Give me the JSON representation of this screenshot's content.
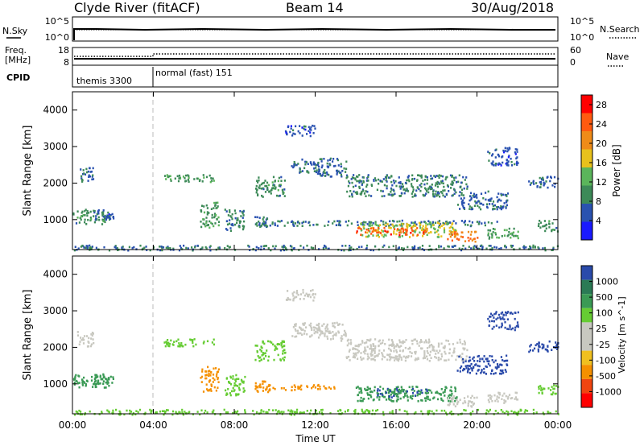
{
  "header": {
    "station": "Clyde River (fitACF)",
    "beam": "Beam 14",
    "date": "30/Aug/2018"
  },
  "nsky_panel": {
    "left_label": "N.Sky",
    "right_label": "N.Search",
    "left_ticks": [
      "10^5",
      "10^0"
    ],
    "right_ticks": [
      "10^5",
      "10^0"
    ]
  },
  "freq_panel": {
    "left_label_1": "Freq.",
    "left_label_2": "[MHz]",
    "right_label": "Nave",
    "left_ticks": [
      "18",
      "8"
    ],
    "right_ticks": [
      "60",
      "0"
    ]
  },
  "cpid_panel": {
    "label": "CPID",
    "modes": [
      {
        "name": "themis 3300",
        "start_hour": 0,
        "end_hour": 4
      },
      {
        "name": "normal (fast) 151",
        "start_hour": 4,
        "end_hour": 24
      }
    ]
  },
  "colors": {
    "power_scale": [
      "#1a1aff",
      "#2a52b0",
      "#3d8a58",
      "#5bb55b",
      "#e8c11c",
      "#ef8b18",
      "#ff5a10",
      "#ff0000"
    ],
    "velocity_scale": [
      "#ff0000",
      "#f04510",
      "#f59000",
      "#f0c020",
      "#c8c8c0",
      "#c8c8c0",
      "#66cc33",
      "#3a9a55",
      "#2a7a55",
      "#2a4aaa"
    ]
  },
  "chart_data": [
    {
      "type": "heatmap",
      "title": "Power",
      "ylabel": "Slant Range [km]",
      "xlabel": "",
      "x_ticks": [
        "00:00",
        "04:00",
        "08:00",
        "12:00",
        "16:00",
        "20:00",
        "00:00"
      ],
      "xlim_hours": [
        0,
        24
      ],
      "y_ticks": [
        1000,
        2000,
        3000,
        4000
      ],
      "ylim": [
        180,
        4500
      ],
      "colorbar": {
        "label": "Power [dB]",
        "ticks": [
          4,
          8,
          12,
          16,
          20,
          24,
          28
        ],
        "range": [
          0,
          30
        ]
      },
      "scatter_regions": [
        {
          "t0": 0.0,
          "t1": 1.8,
          "r0": 900,
          "r1": 1300,
          "value": 10
        },
        {
          "t0": 0.2,
          "t1": 1.0,
          "r0": 2050,
          "r1": 2450,
          "value": 7
        },
        {
          "t0": 1.0,
          "t1": 2.0,
          "r0": 1000,
          "r1": 1300,
          "value": 6
        },
        {
          "t0": 4.5,
          "t1": 7.0,
          "r0": 2050,
          "r1": 2250,
          "value": 11
        },
        {
          "t0": 6.3,
          "t1": 7.2,
          "r0": 800,
          "r1": 1500,
          "value": 11
        },
        {
          "t0": 7.5,
          "t1": 8.5,
          "r0": 700,
          "r1": 1300,
          "value": 9
        },
        {
          "t0": 9.0,
          "t1": 9.8,
          "r0": 800,
          "r1": 1100,
          "value": 9
        },
        {
          "t0": 9.0,
          "t1": 10.5,
          "r0": 1650,
          "r1": 2200,
          "value": 10
        },
        {
          "t0": 10.8,
          "t1": 12.2,
          "r0": 2300,
          "r1": 2700,
          "value": 8
        },
        {
          "t0": 10.5,
          "t1": 12.0,
          "r0": 3300,
          "r1": 3600,
          "value": 6
        },
        {
          "t0": 12.0,
          "t1": 13.5,
          "r0": 2200,
          "r1": 2700,
          "value": 7
        },
        {
          "t0": 13.5,
          "t1": 19.5,
          "r0": 1650,
          "r1": 2250,
          "value": 9
        },
        {
          "t0": 19.0,
          "t1": 21.5,
          "r0": 1300,
          "r1": 1800,
          "value": 7
        },
        {
          "t0": 20.5,
          "t1": 22.0,
          "r0": 2500,
          "r1": 3000,
          "value": 6
        },
        {
          "t0": 22.5,
          "t1": 24.0,
          "r0": 1900,
          "r1": 2200,
          "value": 7
        },
        {
          "t0": 9.0,
          "t1": 21.0,
          "r0": 850,
          "r1": 1000,
          "value": 8
        },
        {
          "t0": 14.0,
          "t1": 19.0,
          "r0": 550,
          "r1": 950,
          "value": 16
        },
        {
          "t0": 14.0,
          "t1": 17.5,
          "r0": 600,
          "r1": 800,
          "value": 26
        },
        {
          "t0": 18.5,
          "t1": 20.0,
          "r0": 400,
          "r1": 700,
          "value": 24
        },
        {
          "t0": 20.5,
          "t1": 22.0,
          "r0": 500,
          "r1": 800,
          "value": 12
        },
        {
          "t0": 23.0,
          "t1": 24.0,
          "r0": 700,
          "r1": 1000,
          "value": 10
        },
        {
          "t0": 0.0,
          "t1": 24.0,
          "r0": 180,
          "r1": 320,
          "value": 8
        }
      ]
    },
    {
      "type": "heatmap",
      "title": "Velocity",
      "ylabel": "Slant Range [km]",
      "xlabel": "Time UT",
      "x_ticks": [
        "00:00",
        "04:00",
        "08:00",
        "12:00",
        "16:00",
        "20:00",
        "00:00"
      ],
      "xlim_hours": [
        0,
        24
      ],
      "y_ticks": [
        1000,
        2000,
        3000,
        4000
      ],
      "ylim": [
        180,
        4500
      ],
      "colorbar": {
        "label": "Velocity [m s^-1]",
        "ticks": [
          1000,
          500,
          100,
          25,
          -25,
          -100,
          -500,
          -1000
        ],
        "range": [
          -1000,
          1000
        ]
      },
      "scatter_regions": [
        {
          "t0": 0.0,
          "t1": 1.8,
          "r0": 900,
          "r1": 1300,
          "value": 150
        },
        {
          "t0": 0.2,
          "t1": 1.0,
          "r0": 2050,
          "r1": 2450,
          "value": 0
        },
        {
          "t0": 1.0,
          "t1": 2.0,
          "r0": 1000,
          "r1": 1300,
          "value": 120
        },
        {
          "t0": 4.5,
          "t1": 7.0,
          "r0": 2050,
          "r1": 2250,
          "value": 60
        },
        {
          "t0": 6.3,
          "t1": 7.2,
          "r0": 800,
          "r1": 1500,
          "value": -200
        },
        {
          "t0": 7.5,
          "t1": 8.5,
          "r0": 700,
          "r1": 1300,
          "value": 80
        },
        {
          "t0": 9.0,
          "t1": 9.8,
          "r0": 800,
          "r1": 1100,
          "value": -150
        },
        {
          "t0": 9.0,
          "t1": 10.5,
          "r0": 1650,
          "r1": 2200,
          "value": 40
        },
        {
          "t0": 10.8,
          "t1": 12.2,
          "r0": 2300,
          "r1": 2700,
          "value": 0
        },
        {
          "t0": 10.5,
          "t1": 12.0,
          "r0": 3300,
          "r1": 3600,
          "value": 0
        },
        {
          "t0": 12.0,
          "t1": 13.5,
          "r0": 2200,
          "r1": 2700,
          "value": 0
        },
        {
          "t0": 13.5,
          "t1": 19.5,
          "r0": 1650,
          "r1": 2250,
          "value": 0
        },
        {
          "t0": 19.0,
          "t1": 21.5,
          "r0": 1300,
          "r1": 1800,
          "value": 600
        },
        {
          "t0": 20.5,
          "t1": 22.0,
          "r0": 2500,
          "r1": 3000,
          "value": 600
        },
        {
          "t0": 22.5,
          "t1": 24.0,
          "r0": 1900,
          "r1": 2200,
          "value": 700
        },
        {
          "t0": 9.0,
          "t1": 13.0,
          "r0": 850,
          "r1": 1000,
          "value": -120
        },
        {
          "t0": 14.0,
          "t1": 19.0,
          "r0": 550,
          "r1": 950,
          "value": 150
        },
        {
          "t0": 15.0,
          "t1": 17.5,
          "r0": 650,
          "r1": 900,
          "value": 500
        },
        {
          "t0": 18.5,
          "t1": 20.0,
          "r0": 400,
          "r1": 700,
          "value": 0
        },
        {
          "t0": 20.5,
          "t1": 22.0,
          "r0": 500,
          "r1": 800,
          "value": 0
        },
        {
          "t0": 23.0,
          "t1": 24.0,
          "r0": 700,
          "r1": 1000,
          "value": 80
        },
        {
          "t0": 0.0,
          "t1": 24.0,
          "r0": 180,
          "r1": 320,
          "value": 60
        }
      ]
    }
  ]
}
